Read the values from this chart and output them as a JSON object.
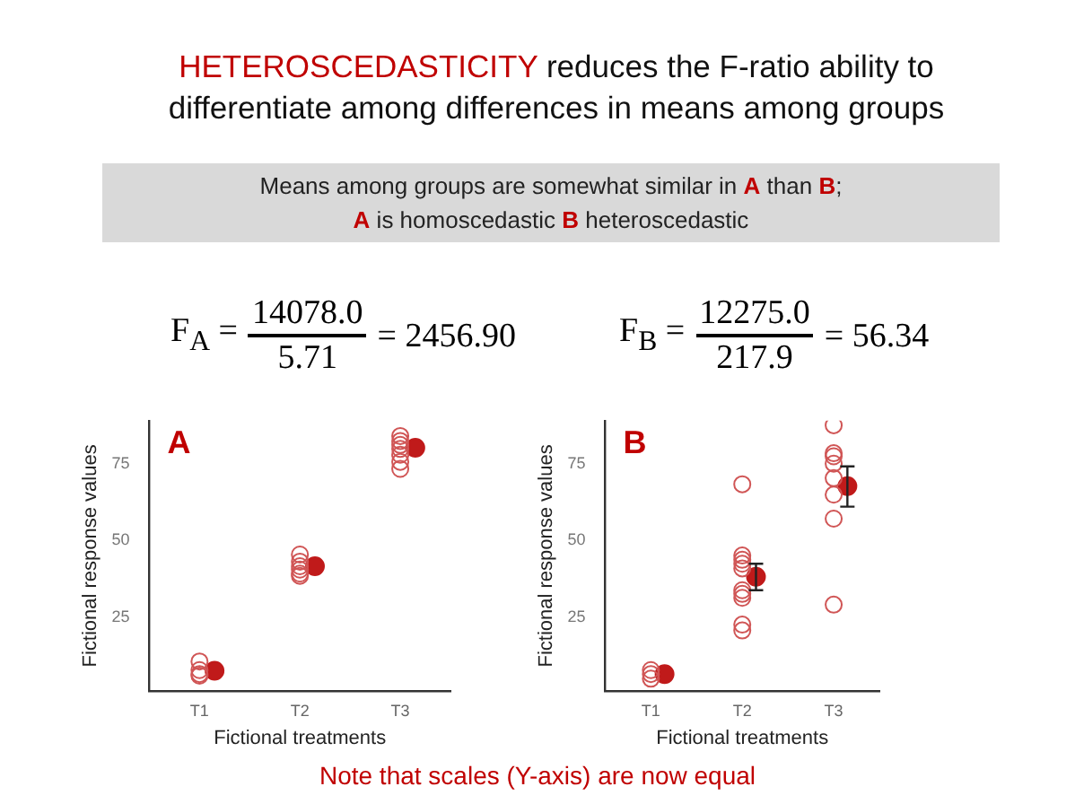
{
  "chart_data": [
    {
      "type": "scatter",
      "title": "HETEROSCEDASTICITY reduces the F-ratio ability to differentiate among differences in means among groups",
      "subtitle": "Means among groups are somewhat similar in A than B; A is homoscedastic B heteroscedastic",
      "xlabel": "Fictional treatments",
      "ylabel": "Fictional response values",
      "annotations": [
        "A",
        "F$_{A}$ =",
        "14078.0",
        "5.71",
        "= 2456.90"
      ],
      "categories": [
        "T1",
        "T2",
        "T3"
      ],
      "marker": "circle",
      "ylim": [
        1,
        89
      ],
      "yticks": [
        25,
        50,
        75
      ],
      "grid": false,
      "legend": false,
      "series": [
        {
          "color": "#d05555",
          "x": [
            "T1",
            "T1",
            "T1",
            "T1",
            "T2",
            "T2",
            "T2",
            "T2",
            "T2",
            "T2",
            "T3",
            "T3",
            "T3",
            "T3",
            "T3",
            "T3",
            "T3"
          ],
          "values": [
            10.6,
            7.8,
            6.5,
            6.0,
            45.4,
            43.1,
            41.6,
            40.5,
            39.2,
            38.5,
            84.0,
            82.4,
            81.1,
            79.8,
            77.9,
            75.6,
            73.3
          ]
        },
        {
          "color": "#c01a1a",
          "x": [
            "T1",
            "T2",
            "T3"
          ],
          "values": [
            7.6,
            41.6,
            80.2
          ]
        }
      ]
    },
    {
      "type": "scatter",
      "xlabel": "Fictional treatments",
      "ylabel": "Fictional response values",
      "annotations": [
        "B",
        "F$_{B}$ =",
        "12275.0",
        "217.9",
        "= 56.34",
        "Note that scales (Y-axis) are now equal"
      ],
      "categories": [
        "T1",
        "T2",
        "T3"
      ],
      "marker": "circle",
      "ylim": [
        1,
        89
      ],
      "yticks": [
        25,
        50,
        75
      ],
      "grid": false,
      "legend": false,
      "series": [
        {
          "color": "#d05555",
          "x": [
            "T1",
            "T1",
            "T1",
            "T2",
            "T2",
            "T2",
            "T2",
            "T2",
            "T2",
            "T2",
            "T2",
            "T2",
            "T2",
            "T3",
            "T3",
            "T3",
            "T3",
            "T3",
            "T3",
            "T3",
            "T3"
          ],
          "values": [
            7.8,
            6.5,
            5.0,
            68.3,
            45.1,
            43.7,
            42.4,
            40.9,
            33.8,
            32.6,
            31.3,
            22.6,
            20.7,
            87.5,
            78.4,
            77.4,
            75.0,
            70.3,
            64.9,
            57.1,
            29.1
          ]
        },
        {
          "color": "#c01a1a",
          "x": [
            "T1",
            "T2",
            "T3"
          ],
          "values": [
            6.5,
            38.2,
            67.7
          ],
          "errors": [
            null,
            [
              33.8,
              42.4
            ],
            [
              61.0,
              74.1
            ]
          ]
        }
      ]
    }
  ]
}
